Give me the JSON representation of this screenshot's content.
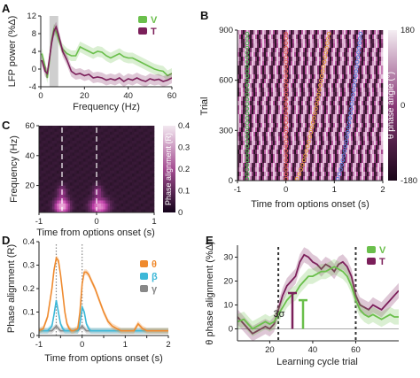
{
  "chart_data": [
    {
      "panel": "A",
      "type": "line",
      "xlabel": "Frequency (Hz)",
      "ylabel": "LFP power (%Δ)",
      "xlim": [
        0,
        60
      ],
      "ylim": [
        -4,
        12
      ],
      "xticks": [
        0,
        20,
        40,
        60
      ],
      "yticks": [
        -4,
        0,
        4,
        8,
        12
      ],
      "highlight_band_hz": [
        4,
        8
      ],
      "x": [
        0.5,
        2,
        3,
        4,
        5,
        6,
        7,
        8,
        9,
        10,
        12,
        14,
        16,
        18,
        20,
        22,
        24,
        26,
        28,
        30,
        32,
        34,
        36,
        38,
        40,
        42,
        44,
        46,
        48,
        50,
        52,
        54,
        56,
        58,
        60
      ],
      "series": [
        {
          "name": "V",
          "color": "#6abf4b",
          "values": [
            3.5,
            0.5,
            -2.0,
            2.0,
            6.5,
            9.0,
            8.5,
            7.0,
            5.5,
            4.5,
            3.5,
            3.0,
            3.0,
            5.0,
            4.5,
            4.0,
            3.5,
            4.0,
            3.8,
            3.0,
            2.5,
            3.0,
            3.5,
            2.8,
            2.5,
            2.5,
            2.0,
            1.5,
            1.0,
            0.5,
            0.0,
            -0.3,
            -0.5,
            -1.5,
            -1.0
          ]
        },
        {
          "name": "T",
          "color": "#7b1f5a",
          "values": [
            2.0,
            -0.5,
            -1.0,
            2.5,
            6.0,
            8.5,
            9.5,
            8.0,
            6.0,
            4.0,
            2.0,
            -0.5,
            -1.2,
            -1.0,
            -1.5,
            -1.2,
            -2.0,
            -1.8,
            -2.0,
            -2.5,
            -2.2,
            -2.5,
            -2.0,
            -2.8,
            -2.2,
            -2.5,
            -2.0,
            -2.5,
            -2.8,
            -2.2,
            -2.5,
            -2.3,
            -2.8,
            -2.5,
            -2.0
          ]
        }
      ]
    },
    {
      "panel": "B",
      "type": "heatmap",
      "xlabel": "Time from options onset (s)",
      "ylabel": "Trial",
      "colorbar_label": "θ phase angle (°)",
      "colorbar_ticks": [
        180,
        0,
        -180
      ],
      "xlim": [
        -1,
        2
      ],
      "ylim": [
        0,
        900
      ],
      "xticks": [
        -1,
        0,
        1,
        2
      ],
      "yticks": [
        0,
        300,
        600,
        900
      ],
      "event_markers": [
        {
          "color": "#4caf50",
          "t_start": -0.8,
          "t_end": -0.8
        },
        {
          "color": "#e06050",
          "t_start": 0.0,
          "t_end": 0.0
        },
        {
          "color": "#e8a040",
          "t_start": 0.2,
          "t_end": 0.9
        },
        {
          "color": "#5b7fdc",
          "t_start": 1.05,
          "t_end": 1.55
        }
      ]
    },
    {
      "panel": "C",
      "type": "heatmap",
      "xlabel": "Time from options onset (s)",
      "ylabel": "Frequency (Hz)",
      "colorbar_label": "Phase alignment (R)",
      "colorbar_ticks": [
        0.4,
        0.3,
        0.2,
        0.1,
        0
      ],
      "xlim": [
        -1,
        1
      ],
      "ylim": [
        2,
        60
      ],
      "xticks": [
        -1,
        0,
        1
      ],
      "yticks": [
        20,
        40,
        60
      ],
      "dashed_lines_s": [
        -0.6,
        0.0
      ]
    },
    {
      "panel": "D",
      "type": "line",
      "xlabel": "Time from options onset (s)",
      "ylabel": "Phase alignment (R)",
      "xlim": [
        -1,
        2
      ],
      "ylim": [
        0,
        0.4
      ],
      "xticks": [
        -1,
        -0.5,
        0,
        0.5,
        1,
        1.5,
        2
      ],
      "xtick_labels": [
        "-1",
        "",
        "0",
        "",
        "1",
        "",
        "2"
      ],
      "yticks": [
        0,
        0.1,
        0.2,
        0.3,
        0.4
      ],
      "dotted_lines_s": [
        -0.6,
        0.0
      ],
      "x": [
        -1.0,
        -0.9,
        -0.8,
        -0.7,
        -0.65,
        -0.6,
        -0.55,
        -0.5,
        -0.45,
        -0.4,
        -0.35,
        -0.3,
        -0.25,
        -0.2,
        -0.1,
        -0.05,
        0.0,
        0.05,
        0.1,
        0.15,
        0.2,
        0.3,
        0.4,
        0.5,
        0.6,
        0.7,
        0.8,
        0.9,
        1.0,
        1.2,
        1.3,
        1.4,
        1.5,
        1.6,
        1.8,
        2.0
      ],
      "series": [
        {
          "name": "θ",
          "color": "#ef8a2e",
          "values": [
            0.02,
            0.03,
            0.08,
            0.2,
            0.28,
            0.33,
            0.32,
            0.26,
            0.18,
            0.1,
            0.05,
            0.03,
            0.02,
            0.02,
            0.03,
            0.1,
            0.22,
            0.27,
            0.27,
            0.26,
            0.24,
            0.2,
            0.15,
            0.1,
            0.06,
            0.04,
            0.03,
            0.02,
            0.02,
            0.02,
            0.05,
            0.03,
            0.02,
            0.02,
            0.02,
            0.02
          ]
        },
        {
          "name": "β",
          "color": "#3db8d8",
          "values": [
            0.02,
            0.02,
            0.02,
            0.04,
            0.09,
            0.15,
            0.1,
            0.05,
            0.03,
            0.02,
            0.02,
            0.02,
            0.02,
            0.02,
            0.02,
            0.05,
            0.12,
            0.1,
            0.05,
            0.03,
            0.02,
            0.02,
            0.02,
            0.02,
            0.02,
            0.02,
            0.02,
            0.02,
            0.02,
            0.02,
            0.02,
            0.02,
            0.02,
            0.02,
            0.02,
            0.02
          ]
        },
        {
          "name": "γ",
          "color": "#888888",
          "values": [
            0.02,
            0.02,
            0.02,
            0.02,
            0.03,
            0.04,
            0.03,
            0.02,
            0.02,
            0.02,
            0.02,
            0.02,
            0.02,
            0.02,
            0.02,
            0.03,
            0.04,
            0.03,
            0.02,
            0.02,
            0.02,
            0.02,
            0.02,
            0.02,
            0.02,
            0.02,
            0.02,
            0.02,
            0.02,
            0.02,
            0.02,
            0.02,
            0.02,
            0.02,
            0.02,
            0.02
          ]
        }
      ]
    },
    {
      "panel": "E",
      "type": "line",
      "xlabel": "Learning cycle trial",
      "ylabel": "θ phase alignment (%Δ)",
      "xlim": [
        5,
        80
      ],
      "ylim": [
        -5,
        35
      ],
      "xticks": [
        20,
        40,
        60
      ],
      "yticks": [
        0,
        10,
        20,
        30
      ],
      "dashed_lines_trial": [
        24,
        60
      ],
      "annotation": "3σ",
      "x": [
        5,
        8,
        10,
        12,
        14,
        16,
        18,
        20,
        22,
        24,
        26,
        28,
        30,
        32,
        34,
        36,
        38,
        40,
        42,
        44,
        46,
        48,
        50,
        52,
        54,
        56,
        58,
        60,
        62,
        64,
        66,
        68,
        70,
        72,
        74,
        76,
        78,
        80
      ],
      "series": [
        {
          "name": "V",
          "color": "#6abf4b",
          "values": [
            3,
            4,
            2,
            0,
            1,
            2,
            3,
            2,
            3,
            6,
            9,
            12,
            14,
            15,
            18,
            20,
            22,
            22,
            23,
            24,
            24,
            25,
            26,
            25,
            24,
            22,
            18,
            12,
            8,
            6,
            5,
            6,
            5,
            4,
            5,
            6,
            5,
            5
          ]
        },
        {
          "name": "T",
          "color": "#7b1f5a",
          "values": [
            5,
            2,
            0,
            -2,
            -1,
            0,
            1,
            0,
            2,
            8,
            14,
            18,
            20,
            22,
            28,
            31,
            30,
            28,
            27,
            25,
            27,
            26,
            24,
            27,
            28,
            26,
            22,
            14,
            10,
            9,
            8,
            10,
            9,
            8,
            10,
            12,
            14,
            16
          ]
        }
      ]
    }
  ]
}
